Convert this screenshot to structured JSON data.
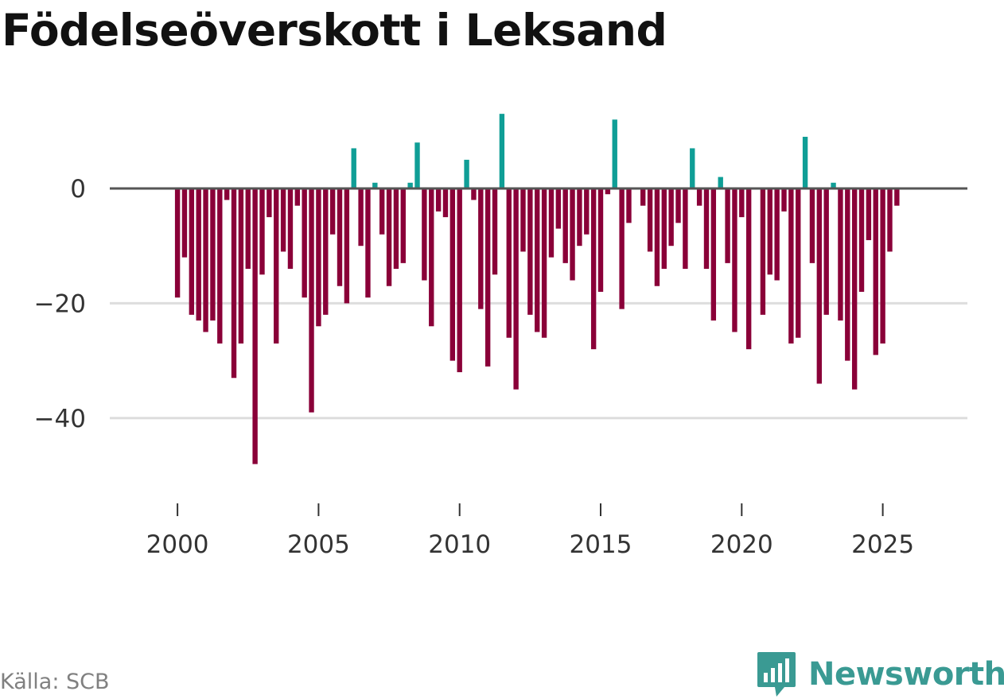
{
  "title": "Födelseöverskott i Leksand",
  "source": "Källa: SCB",
  "brand": "Newsworthy",
  "colors": {
    "positive": "#0f9e96",
    "negative": "#8a0038",
    "zeroline": "#555555",
    "gridline": "#dddddd"
  },
  "chart_data": {
    "type": "bar",
    "title": "Födelseöverskott i Leksand",
    "xlabel": "",
    "ylabel": "",
    "frequency": "quarterly",
    "start": 2000.0,
    "ylim": [
      -55,
      18
    ],
    "xlim": [
      1997.6,
      2028.0
    ],
    "yticks": [
      0,
      -20,
      -40
    ],
    "ytick_labels": [
      "0",
      "−20",
      "−40"
    ],
    "xticks": [
      2000,
      2005,
      2010,
      2015,
      2020,
      2025
    ],
    "xtick_labels": [
      "2000",
      "2005",
      "2010",
      "2015",
      "2020",
      "2025"
    ],
    "values": [
      -19,
      -12,
      -22,
      -23,
      -25,
      -23,
      -27,
      -2,
      -33,
      -27,
      -14,
      -48,
      -15,
      -5,
      -27,
      -11,
      -14,
      -3,
      -19,
      -39,
      -24,
      -22,
      -8,
      -17,
      -20,
      7,
      -10,
      -19,
      1,
      -8,
      -17,
      -14,
      -13,
      1,
      8,
      -16,
      -24,
      -4,
      -5,
      -30,
      -32,
      5,
      -2,
      -21,
      -31,
      -15,
      13,
      -26,
      -35,
      -11,
      -22,
      -25,
      -26,
      -12,
      -7,
      -13,
      -16,
      -10,
      -8,
      -28,
      -18,
      -1,
      12,
      -21,
      -6,
      0,
      -3,
      -11,
      -17,
      -14,
      -10,
      -6,
      -14,
      7,
      -3,
      -14,
      -23,
      2,
      -13,
      -25,
      -5,
      -28,
      0,
      -22,
      -15,
      -16,
      -4,
      -27,
      -26,
      9,
      -13,
      -34,
      -22,
      1,
      -23,
      -30,
      -35,
      -18,
      -9,
      -29,
      -27,
      -11,
      -3
    ]
  }
}
